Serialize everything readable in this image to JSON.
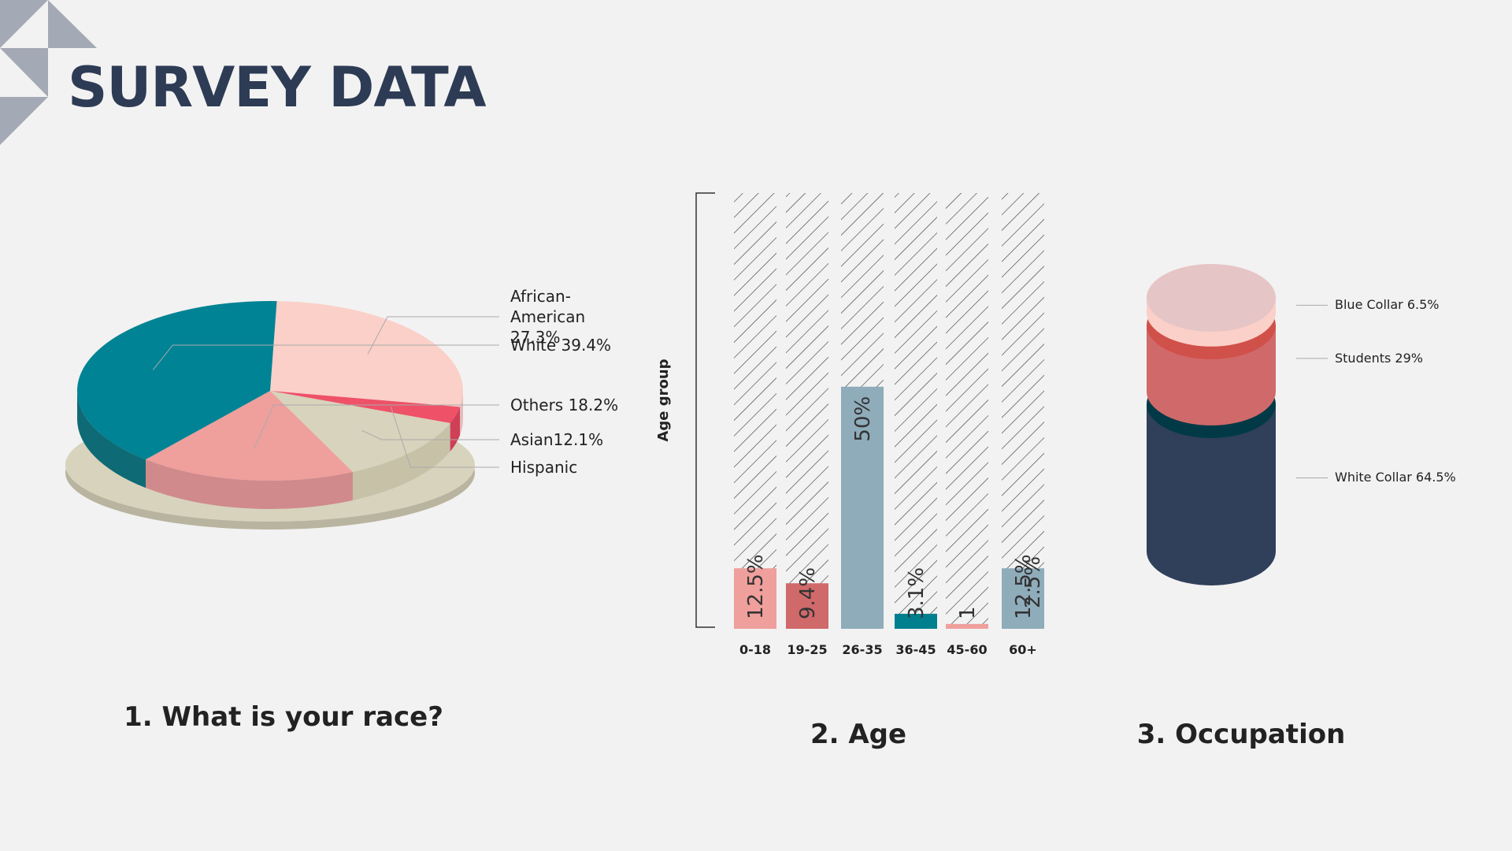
{
  "title": "SURVEY DATA",
  "chart_data": [
    {
      "type": "pie",
      "title": "1. What is your race?",
      "categories": [
        "African-American 27.3%",
        "Hispanic",
        "Asian12.1%",
        "Others 18.2%",
        "White 39.4%"
      ],
      "values": [
        27.3,
        3,
        12.1,
        18.2,
        39.4
      ],
      "colors": [
        "#fbd0c8",
        "#ee5168",
        "#d8d3bc",
        "#ef9f9c",
        "#008394"
      ],
      "side_colors": [
        "#e3bdbb",
        "#cf3f57",
        "#c7c1a8",
        "#d08a8b",
        "#0e6b75"
      ]
    },
    {
      "type": "bar",
      "title": "2. Age",
      "y_label": "Age group",
      "categories": [
        "0-18",
        "19-25",
        "26-35",
        "36-45",
        "45-60",
        "60+"
      ],
      "values": [
        12.5,
        9.4,
        50,
        3.1,
        1,
        12.5
      ],
      "value_labels": [
        "12.5%",
        "9.4%",
        "50%",
        "3.1%",
        "1",
        "12.5%"
      ],
      "colors": [
        "#ef9f9c",
        "#d0696a",
        "#8facbb",
        "#007f8e",
        "#ef9f9c",
        "#8facbb"
      ],
      "ylim": [
        0,
        90
      ],
      "annotations": [
        "2.5%"
      ]
    },
    {
      "type": "stacked-cylinder",
      "title": "3. Occupation",
      "categories": [
        "Blue Collar 6.5%",
        "Students 29%",
        "White Collar 64.5%"
      ],
      "values": [
        6.5,
        29,
        64.5
      ],
      "colors": [
        "#e6c5c6",
        "#d0504a",
        "#013a46"
      ],
      "side_colors": [
        "#fbd0c8",
        "#d0696a",
        "#303f5a"
      ]
    }
  ]
}
